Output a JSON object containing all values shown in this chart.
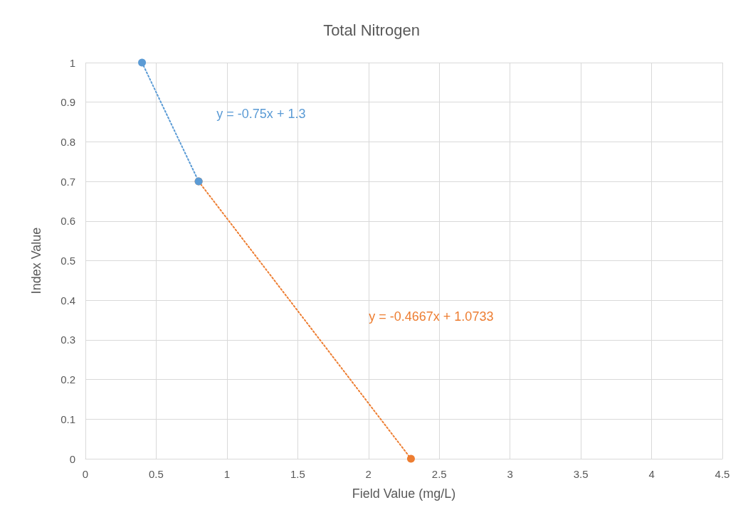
{
  "chart_data": {
    "type": "line",
    "title": "Total Nitrogen",
    "xlabel": "Field Value (mg/L)",
    "ylabel": "Index Value",
    "series": [
      {
        "color": "#5b9bd5",
        "x": [
          0.4,
          0.8
        ],
        "values": [
          1,
          0.7
        ]
      },
      {
        "color": "#ed7d31",
        "x": [
          0.8,
          2.3
        ],
        "values": [
          0.7,
          0
        ]
      }
    ],
    "annotations": [
      "y = -0.75x + 1.3",
      "y = -0.4667x + 1.0733"
    ],
    "xlim": [
      0,
      4.5
    ],
    "xticks": [
      0,
      0.5,
      1,
      1.5,
      2,
      2.5,
      3,
      3.5,
      4,
      4.5
    ],
    "ylim": [
      0,
      1
    ],
    "yticks": [
      0,
      0.1,
      0.2,
      0.3,
      0.4,
      0.5,
      0.6,
      0.7,
      0.8,
      0.9,
      1
    ],
    "grid": true,
    "marker": "circle",
    "line_style": "dotted"
  }
}
